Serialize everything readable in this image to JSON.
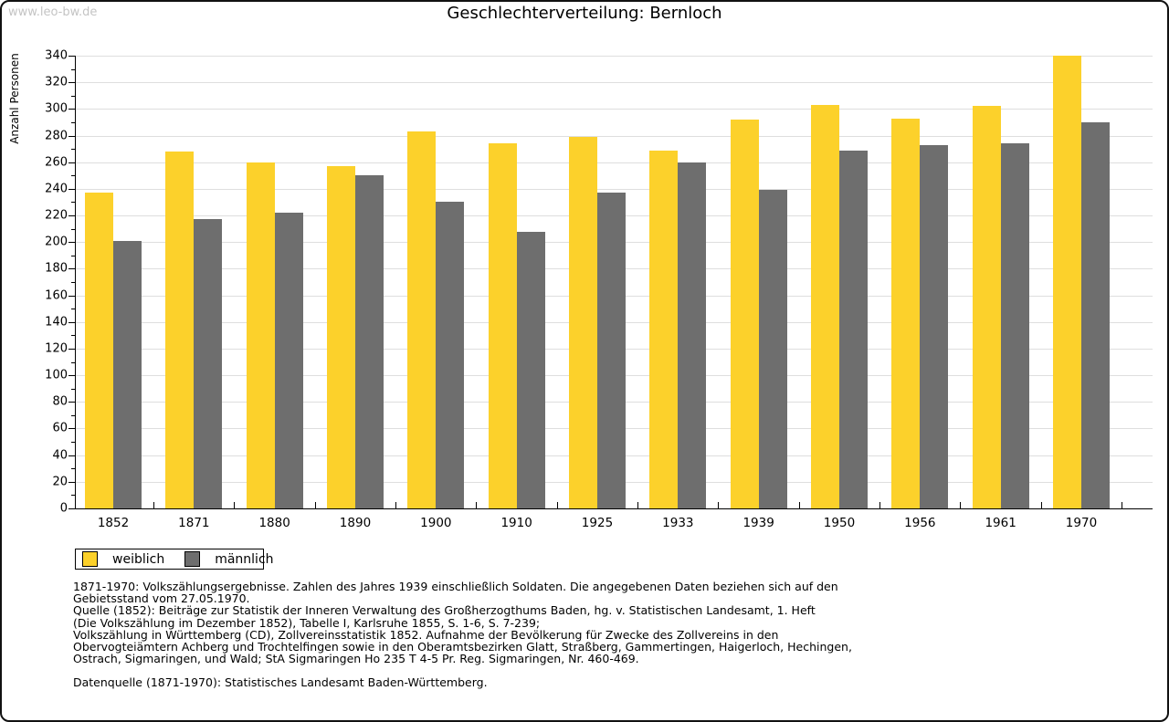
{
  "watermark": "www.leo-bw.de",
  "title": "Geschlechterverteilung: Bernloch",
  "chart_data": {
    "type": "bar",
    "title": "Geschlechterverteilung: Bernloch",
    "categories": [
      "1852",
      "1871",
      "1880",
      "1890",
      "1900",
      "1910",
      "1925",
      "1933",
      "1939",
      "1950",
      "1956",
      "1961",
      "1970"
    ],
    "series": [
      {
        "name": "weiblich",
        "color": "#FCD12B",
        "values": [
          237,
          268,
          260,
          257,
          283,
          274,
          279,
          269,
          292,
          303,
          293,
          302,
          340
        ]
      },
      {
        "name": "männlich",
        "color": "#6E6E6E",
        "values": [
          201,
          217,
          222,
          250,
          230,
          208,
          237,
          260,
          239,
          269,
          273,
          274,
          290
        ]
      }
    ],
    "xlabel": "",
    "ylabel": "Anzahl Personen",
    "ylim": [
      0,
      340
    ],
    "ytick_step": 20,
    "ytick_minor_step": 10,
    "grid": true,
    "legend_position": "below-left"
  },
  "colors": {
    "weiblich": "#FCD12B",
    "männlich": "#6E6E6E",
    "gridline": "#DEDEDE",
    "axis": "#000000",
    "watermark": "#C4C4C4"
  },
  "footnotes": [
    "1871-1970: Volkszählungsergebnisse. Zahlen des Jahres 1939 einschließlich Soldaten. Die angegebenen Daten beziehen sich auf den",
    "Gebietsstand vom 27.05.1970.",
    "Quelle (1852): Beiträge zur Statistik der Inneren Verwaltung des Großherzogthums Baden, hg. v. Statistischen Landesamt, 1. Heft",
    "(Die Volkszählung im Dezember 1852), Tabelle I, Karlsruhe 1855, S. 1-6, S. 7-239;",
    "Volkszählung in Württemberg (CD), Zollvereinsstatistik 1852. Aufnahme der Bevölkerung für Zwecke des Zollvereins in den",
    "Obervogteiämtern Achberg und Trochtelfingen sowie in den Oberamtsbezirken Glatt, Straßberg, Gammertingen, Haigerloch, Hechingen,",
    "Ostrach, Sigmaringen, und Wald; StA Sigmaringen Ho 235 T 4-5 Pr. Reg. Sigmaringen, Nr. 460-469.",
    "Datenquelle (1871-1970): Statistisches Landesamt Baden-Württemberg."
  ]
}
